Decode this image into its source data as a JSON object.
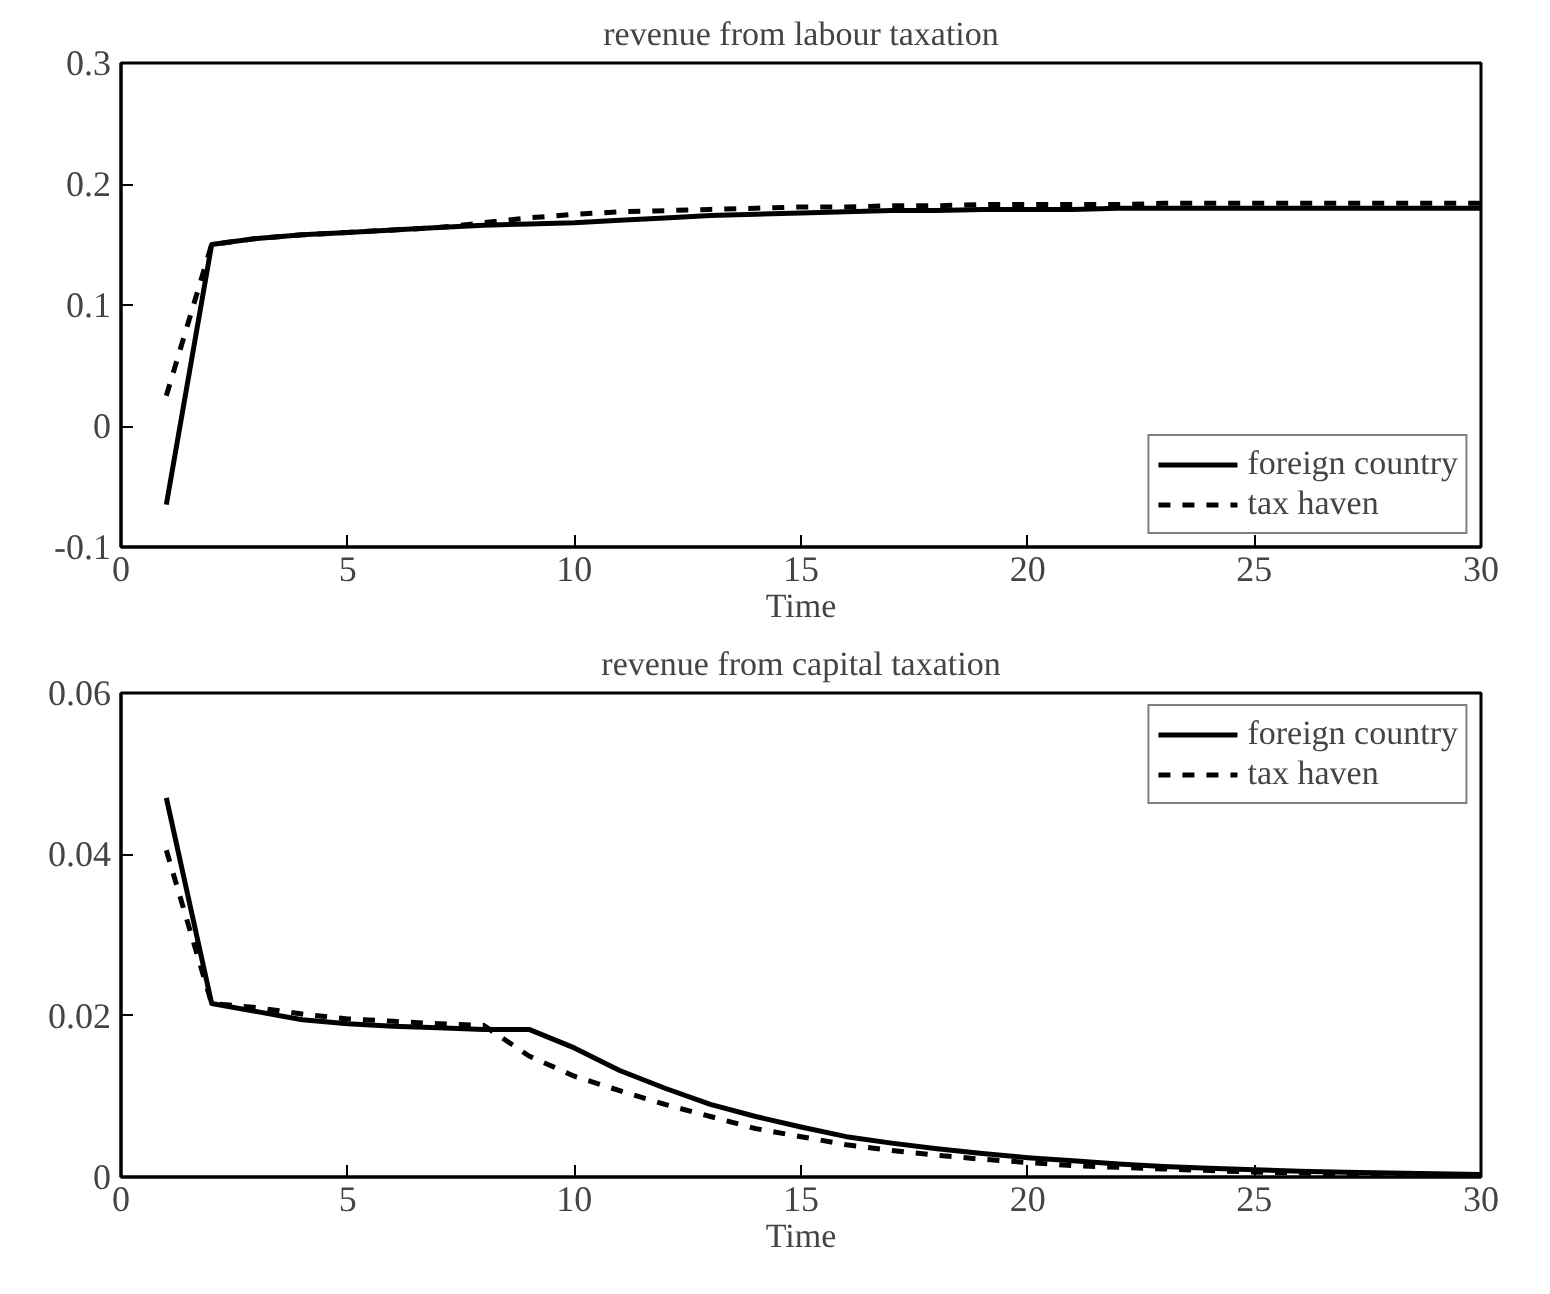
{
  "chart_data": [
    {
      "type": "line",
      "title": "revenue from labour taxation",
      "xlabel": "Time",
      "x": [
        1,
        2,
        3,
        4,
        5,
        6,
        7,
        8,
        9,
        10,
        11,
        12,
        13,
        14,
        15,
        16,
        17,
        18,
        19,
        20,
        21,
        22,
        23,
        24,
        25,
        26,
        27,
        28,
        29,
        30
      ],
      "xlim": [
        0,
        30
      ],
      "xticks": [
        0,
        5,
        10,
        15,
        20,
        25,
        30
      ],
      "ylim": [
        -0.1,
        0.3
      ],
      "yticks": [
        {
          "value": -0.1,
          "label": "-0.1"
        },
        0,
        0.1,
        0.2,
        0.3
      ],
      "grid": false,
      "legend": "bottom right",
      "marker": "none",
      "series": [
        {
          "name": "foreign country",
          "color": "#000000",
          "line_style": "solid",
          "values": [
            -0.065,
            0.15,
            0.155,
            0.158,
            0.16,
            0.162,
            0.164,
            0.166,
            0.167,
            0.168,
            0.17,
            0.172,
            0.174,
            0.175,
            0.176,
            0.177,
            0.178,
            0.178,
            0.179,
            0.179,
            0.179,
            0.18,
            0.18,
            0.18,
            0.18,
            0.18,
            0.18,
            0.18,
            0.18,
            0.18
          ]
        },
        {
          "name": "tax haven",
          "color": "#000000",
          "line_style": "dashed",
          "values": [
            0.025,
            0.15,
            0.155,
            0.158,
            0.16,
            0.162,
            0.164,
            0.168,
            0.172,
            0.175,
            0.177,
            0.178,
            0.179,
            0.18,
            0.181,
            0.181,
            0.182,
            0.182,
            0.183,
            0.183,
            0.183,
            0.183,
            0.184,
            0.184,
            0.184,
            0.184,
            0.184,
            0.184,
            0.184,
            0.184
          ]
        }
      ]
    },
    {
      "type": "line",
      "title": "revenue from capital taxation",
      "xlabel": "Time",
      "x": [
        1,
        2,
        3,
        4,
        5,
        6,
        7,
        8,
        9,
        10,
        11,
        12,
        13,
        14,
        15,
        16,
        17,
        18,
        19,
        20,
        21,
        22,
        23,
        24,
        25,
        26,
        27,
        28,
        29,
        30
      ],
      "xlim": [
        0,
        30
      ],
      "xticks": [
        0,
        5,
        10,
        15,
        20,
        25,
        30
      ],
      "ylim": [
        0,
        0.06
      ],
      "yticks": [
        0,
        0.02,
        0.04,
        0.06
      ],
      "grid": false,
      "legend": "top right",
      "marker": "none",
      "series": [
        {
          "name": "foreign country",
          "color": "#000000",
          "line_style": "solid",
          "values": [
            0.047,
            0.0215,
            0.0205,
            0.0195,
            0.019,
            0.0187,
            0.0185,
            0.0183,
            0.0183,
            0.016,
            0.0132,
            0.011,
            0.009,
            0.0075,
            0.0062,
            0.005,
            0.0042,
            0.0035,
            0.0029,
            0.0024,
            0.002,
            0.0016,
            0.0013,
            0.0011,
            0.0009,
            0.0007,
            0.0006,
            0.0005,
            0.0004,
            0.0003
          ]
        },
        {
          "name": "tax haven",
          "color": "#000000",
          "line_style": "dashed",
          "values": [
            0.0405,
            0.0215,
            0.021,
            0.0202,
            0.0196,
            0.0193,
            0.019,
            0.0188,
            0.015,
            0.0125,
            0.0107,
            0.009,
            0.0075,
            0.006,
            0.005,
            0.004,
            0.0033,
            0.0027,
            0.0022,
            0.0018,
            0.0014,
            0.0012,
            0.001,
            0.0008,
            0.0006,
            0.0005,
            0.0004,
            0.0003,
            0.0002,
            0.0002
          ]
        }
      ]
    }
  ]
}
